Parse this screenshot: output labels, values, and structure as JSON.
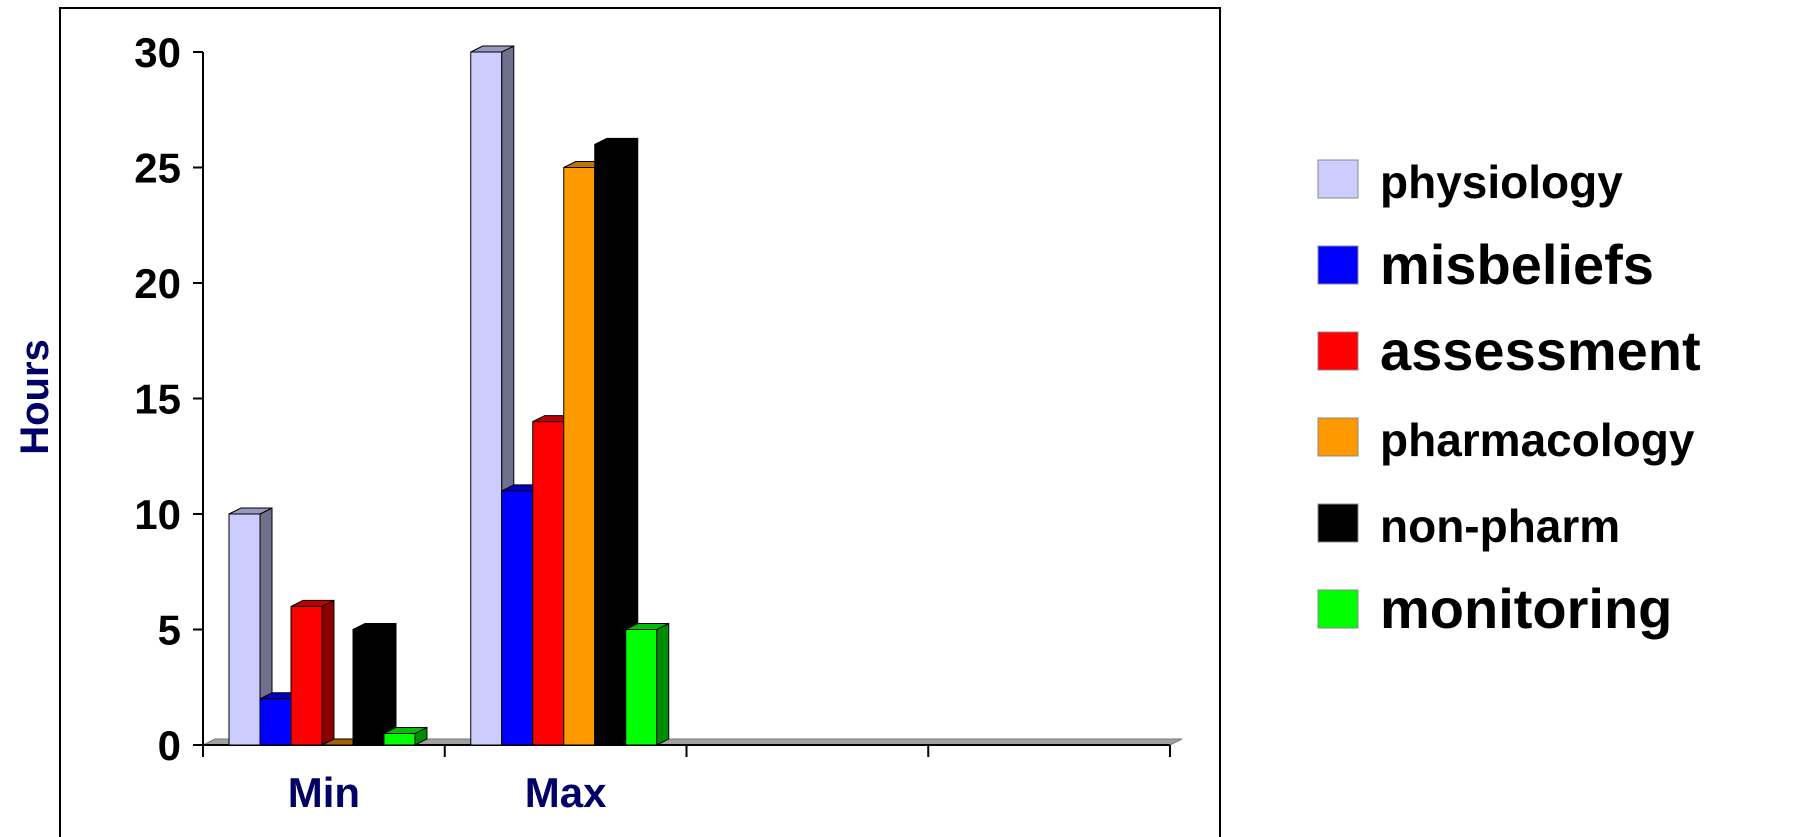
{
  "chart_data": {
    "type": "bar",
    "ylabel": "Hours",
    "xlabel": "",
    "ylim": [
      0,
      30
    ],
    "yticks": [
      "0",
      "5",
      "10",
      "15",
      "20",
      "25",
      "30"
    ],
    "categories": [
      "Min",
      "Max",
      "",
      ""
    ],
    "legend_position": "right",
    "series": [
      {
        "name": "physiology",
        "color": "#ccccff",
        "values": [
          10,
          30,
          null,
          null
        ]
      },
      {
        "name": "misbeliefs",
        "color": "#0000ff",
        "values": [
          2,
          11,
          null,
          null
        ]
      },
      {
        "name": "assessment",
        "color": "#ff0000",
        "values": [
          6,
          14,
          null,
          null
        ]
      },
      {
        "name": "pharmacology",
        "color": "#ff9900",
        "values": [
          0,
          25,
          null,
          null
        ]
      },
      {
        "name": "non-pharm",
        "color": "#000000",
        "values": [
          5,
          26,
          null,
          null
        ]
      },
      {
        "name": "monitoring",
        "color": "#00ff00",
        "values": [
          0.5,
          5,
          null,
          null
        ]
      }
    ]
  }
}
